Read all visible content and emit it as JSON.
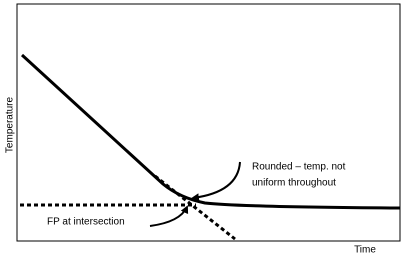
{
  "axes": {
    "y_label": "Temperature",
    "x_label": "Time"
  },
  "annotations": {
    "rounded": [
      "Rounded – temp. not",
      "uniform throughout"
    ],
    "fp": "FP at intersection"
  }
}
